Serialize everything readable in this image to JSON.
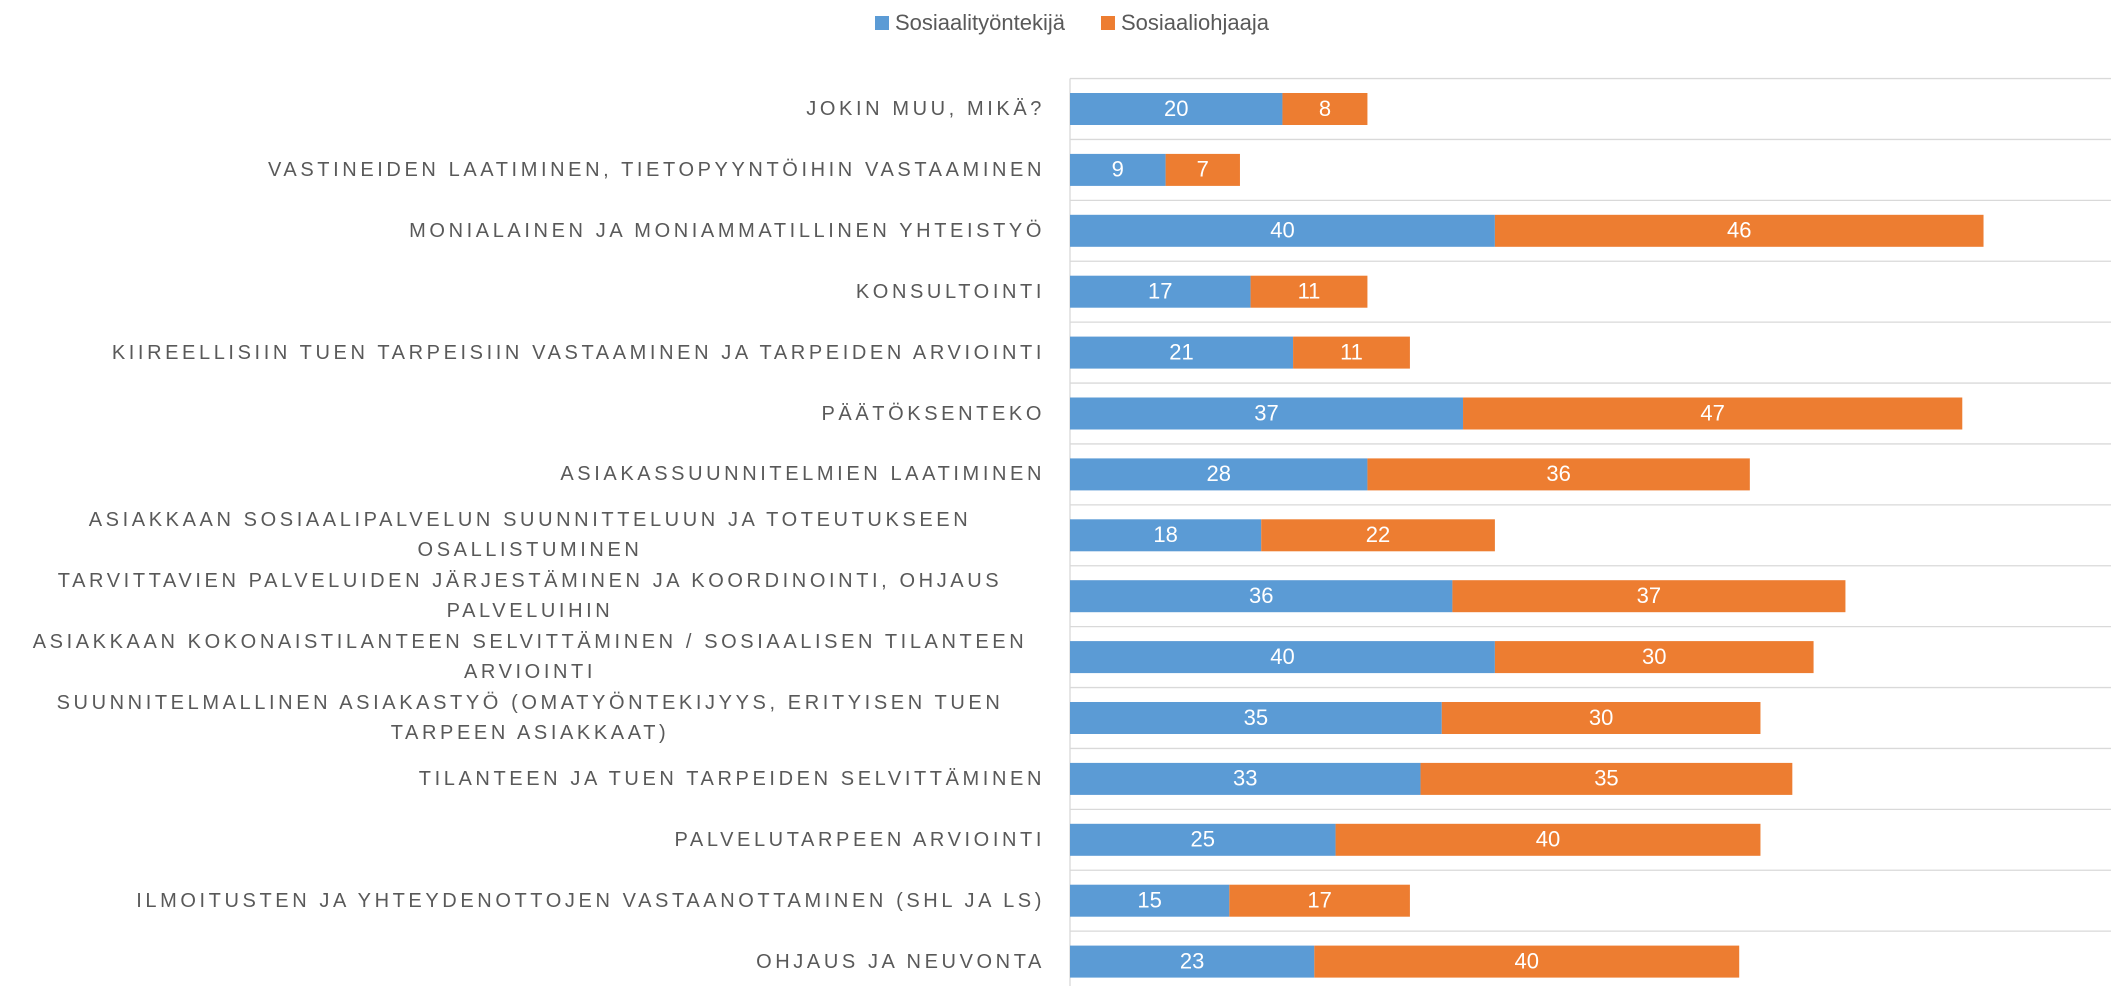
{
  "chart_data": {
    "type": "stacked_bar_horizontal",
    "categories": [
      "JOKIN MUU, MIKÄ?",
      "VASTINEIDEN LAATIMINEN, TIETOPYYNTÖIHIN VASTAAMINEN",
      "MONIALAINEN JA MONIAMMATILLINEN YHTEISTYÖ",
      "KONSULTOINTI",
      "KIIREELLISIIN TUEN TARPEISIIN VASTAAMINEN JA TARPEIDEN ARVIOINTI",
      "PÄÄTÖKSENTEKO",
      "ASIAKASSUUNNITELMIEN LAATIMINEN",
      "ASIAKKAAN SOSIAALIPALVELUN SUUNNITTELUUN JA TOTEUTUKSEEN OSALLISTUMINEN",
      "TARVITTAVIEN PALVELUIDEN JÄRJESTÄMINEN JA KOORDINOINTI, OHJAUS PALVELUIHIN",
      "ASIAKKAAN KOKONAISTILANTEEN SELVITTÄMINEN / SOSIAALISEN TILANTEEN ARVIOINTI",
      "SUUNNITELMALLINEN ASIAKASTYÖ (OMATYÖNTEKIJYYS, ERITYISEN TUEN TARPEEN ASIAKKAAT)",
      "TILANTEEN JA TUEN TARPEIDEN SELVITTÄMINEN",
      "PALVELUTARPEEN ARVIOINTI",
      "ILMOITUSTEN JA YHTEYDENOTTOJEN VASTAANOTTAMINEN (SHL JA LS)",
      "OHJAUS JA NEUVONTA"
    ],
    "series": [
      {
        "name": "Sosiaalityöntekijä",
        "color": "#5b9bd5",
        "values": [
          20,
          9,
          40,
          17,
          21,
          37,
          28,
          18,
          36,
          40,
          35,
          33,
          25,
          15,
          23
        ]
      },
      {
        "name": "Sosiaaliohjaaja",
        "color": "#ed7d31",
        "values": [
          8,
          7,
          46,
          11,
          11,
          47,
          36,
          22,
          37,
          30,
          30,
          35,
          40,
          17,
          40
        ]
      }
    ],
    "xlim": [
      0,
      98
    ],
    "legend": "top"
  }
}
